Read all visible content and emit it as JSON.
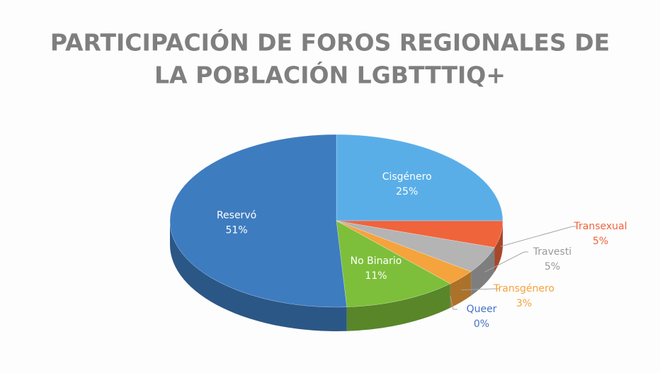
{
  "chart_data": {
    "type": "pie",
    "title": [
      "PARTICIPACIÓN DE FOROS REGIONALES DE",
      "LA POBLACIÓN LGBTTTIQ+"
    ],
    "categories": [
      "Cisgénero",
      "Transexual",
      "Travesti",
      "Transgénero",
      "Queer",
      "No Binario",
      "Reservó"
    ],
    "values": [
      25,
      5,
      5,
      3,
      0,
      11,
      51
    ],
    "value_labels": [
      "25%",
      "5%",
      "5%",
      "3%",
      "0%",
      "11%",
      "51%"
    ],
    "colors": [
      "#5aaee8",
      "#f0643c",
      "#b4b4b4",
      "#f5a33c",
      "#4472c4",
      "#7dbf3a",
      "#3e7cc0"
    ]
  }
}
